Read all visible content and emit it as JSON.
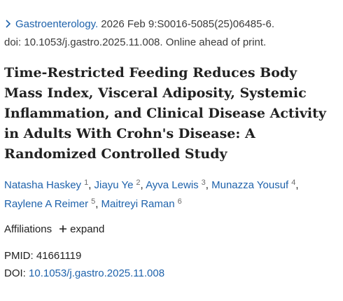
{
  "citation": {
    "journal": "Gastroenterology.",
    "details": "2026 Feb 9:S0016-5085(25)06485-6.",
    "doi_line": "doi: 10.1053/j.gastro.2025.11.008. Online ahead of print."
  },
  "title": "Time-Restricted Feeding Reduces Body Mass Index, Visceral Adiposity, Systemic Inflammation, and Clinical Disease Activity in Adults With Crohn's Disease: A Randomized Controlled Study",
  "separator": ",",
  "authors": [
    {
      "name": "Natasha Haskey",
      "affiliation": "1"
    },
    {
      "name": "Jiayu Ye",
      "affiliation": "2"
    },
    {
      "name": "Ayva Lewis",
      "affiliation": "3"
    },
    {
      "name": "Munazza Yousuf",
      "affiliation": "4"
    },
    {
      "name": "Raylene A Reimer",
      "affiliation": "5"
    },
    {
      "name": "Maitreyi Raman",
      "affiliation": "6"
    }
  ],
  "affiliations": {
    "label": "Affiliations",
    "toggle": "expand"
  },
  "identifiers": {
    "pmid_label": "PMID:",
    "pmid": "41661119",
    "doi_label": "DOI:",
    "doi": "10.1053/j.gastro.2025.11.008"
  }
}
